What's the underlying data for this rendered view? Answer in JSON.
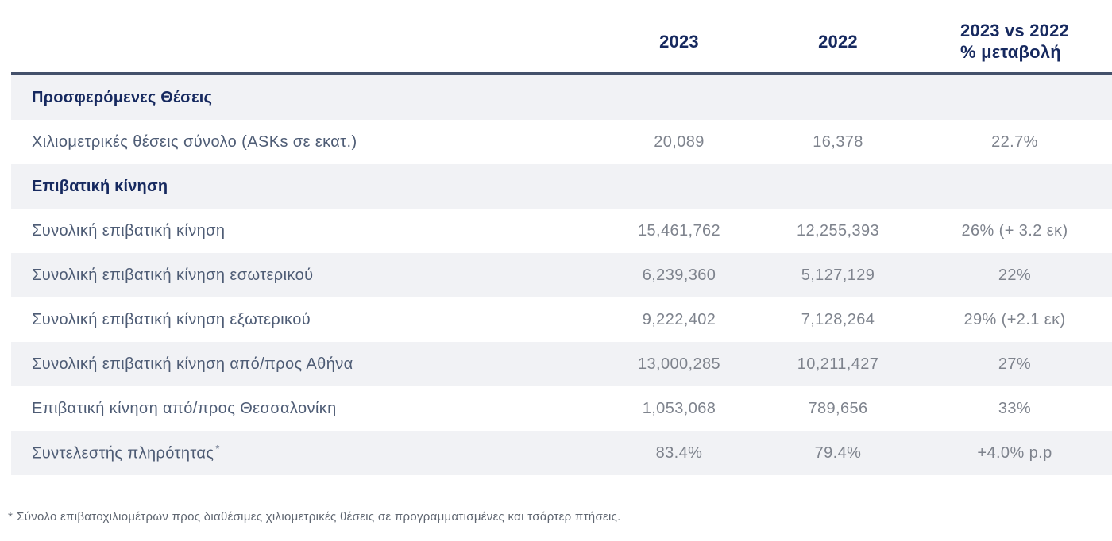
{
  "table": {
    "headers": {
      "y2023": "2023",
      "y2022": "2022",
      "change": "2023 vs 2022\n% μεταβολή"
    },
    "rows": [
      {
        "type": "section",
        "label": "Προσφερόμενες Θέσεις",
        "y2023": "",
        "y2022": "",
        "change": ""
      },
      {
        "type": "data",
        "label": "Χιλιομετρικές θέσεις σύνολο (ASKs σε εκατ.)",
        "y2023": "20,089",
        "y2022": "16,378",
        "change": "22.7%"
      },
      {
        "type": "section",
        "label": "Επιβατική κίνηση",
        "y2023": "",
        "y2022": "",
        "change": ""
      },
      {
        "type": "data",
        "label": "Συνολική επιβατική κίνηση",
        "y2023": "15,461,762",
        "y2022": "12,255,393",
        "change": "26% (+ 3.2 εκ)"
      },
      {
        "type": "data",
        "label": "Συνολική επιβατική κίνηση εσωτερικού",
        "y2023": "6,239,360",
        "y2022": "5,127,129",
        "change": "22%"
      },
      {
        "type": "data",
        "label": "Συνολική επιβατική κίνηση εξωτερικού",
        "y2023": "9,222,402",
        "y2022": "7,128,264",
        "change": "29% (+2.1 εκ)"
      },
      {
        "type": "data",
        "label": "Συνολική επιβατική κίνηση από/προς Αθήνα",
        "y2023": "13,000,285",
        "y2022": "10,211,427",
        "change": "27%"
      },
      {
        "type": "data",
        "label": "Επιβατική κίνηση από/προς Θεσσαλονίκη",
        "y2023": "1,053,068",
        "y2022": "789,656",
        "change": "33%"
      },
      {
        "type": "data",
        "label": "Συντελεστής πληρότητας",
        "footnote_marker": "*",
        "y2023": "83.4%",
        "y2022": "79.4%",
        "change": "+4.0% p.p"
      }
    ]
  },
  "footnote": {
    "marker": "*",
    "text": "Σύνολο επιβατοχιλιομέτρων προς διαθέσιμες χιλιομετρικές θέσεις σε προγραμματισμένες και τσάρτερ πτήσεις."
  },
  "colors": {
    "header_navy": "#16295f",
    "rule": "#44516b",
    "label_slate": "#4e5c75",
    "value_gray": "#7e838d",
    "shaded_row": "#f1f2f5"
  }
}
